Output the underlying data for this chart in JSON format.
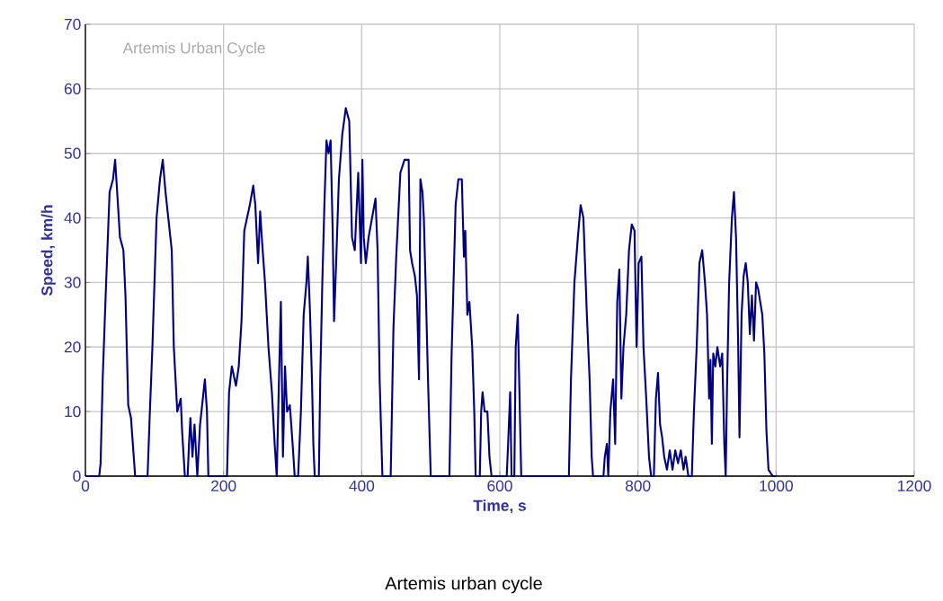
{
  "chart_data": {
    "type": "line",
    "xlabel": "Time, s",
    "ylabel": "Speed, km/h",
    "annotations": [
      "Artemis Urban Cycle",
      "Artemis urban cycle"
    ],
    "x": [
      0,
      20,
      22,
      25,
      30,
      35,
      40,
      43,
      46,
      50,
      55,
      58,
      62,
      66,
      70,
      72,
      90,
      93,
      97,
      103,
      108,
      112,
      116,
      120,
      125,
      128,
      133,
      138,
      140,
      144,
      148,
      150,
      152,
      155,
      158,
      162,
      166,
      170,
      173,
      176,
      178,
      205,
      208,
      212,
      218,
      222,
      226,
      230,
      238,
      243,
      246,
      250,
      253,
      256,
      260,
      265,
      270,
      274,
      277,
      280,
      283,
      286,
      289,
      292,
      296,
      300,
      303,
      308,
      312,
      316,
      320,
      322,
      325,
      328,
      330,
      332,
      338,
      340,
      343,
      346,
      349,
      352,
      355,
      358,
      360,
      363,
      367,
      372,
      377,
      382,
      386,
      390,
      395,
      397,
      399,
      401,
      403,
      406,
      410,
      415,
      420,
      423,
      426,
      430,
      442,
      446,
      450,
      456,
      462,
      468,
      470,
      473,
      477,
      480,
      483,
      485,
      488,
      490,
      493,
      496,
      500,
      527,
      530,
      533,
      536,
      540,
      545,
      548,
      550,
      553,
      556,
      560,
      563,
      565,
      571,
      573,
      575,
      578,
      582,
      585,
      588,
      610,
      612,
      615,
      617,
      621,
      623,
      626,
      628,
      631,
      700,
      703,
      708,
      713,
      717,
      721,
      726,
      730,
      733,
      735,
      750,
      752,
      755,
      757,
      760,
      764,
      767,
      770,
      773,
      776,
      779,
      783,
      787,
      791,
      795,
      798,
      801,
      805,
      808,
      812,
      816,
      819,
      823,
      826,
      829,
      832,
      835,
      838,
      842,
      846,
      850,
      854,
      858,
      862,
      866,
      869,
      873,
      878,
      881,
      885,
      889,
      893,
      897,
      900,
      903,
      905,
      907,
      909,
      912,
      915,
      919,
      922,
      925,
      927,
      929,
      932,
      936,
      939,
      942,
      945,
      947,
      950,
      953,
      956,
      959,
      962,
      965,
      968,
      971,
      974,
      977,
      980,
      983,
      986,
      989,
      995,
      1000
    ],
    "series": [
      {
        "color": "#000080",
        "values": [
          0,
          0,
          2,
          15,
          30,
          44,
          46,
          49,
          44,
          37,
          35,
          28,
          11,
          9,
          3,
          0,
          0,
          9,
          20,
          40,
          46,
          49,
          44,
          40,
          35,
          20,
          10,
          12,
          7,
          0,
          0,
          5,
          9,
          3,
          8,
          0,
          8,
          12,
          15,
          10,
          0,
          0,
          13,
          17,
          14,
          17,
          24,
          38,
          42,
          45,
          42,
          33,
          41,
          36,
          30,
          20,
          13,
          5,
          0,
          14,
          27,
          3,
          17,
          10,
          11,
          5,
          0,
          0,
          10,
          25,
          30,
          34,
          26,
          15,
          5,
          0,
          0,
          15,
          30,
          42,
          52,
          50,
          52,
          38,
          24,
          33,
          46,
          53,
          57,
          55,
          37,
          35,
          47,
          40,
          33,
          49,
          37,
          33,
          37,
          40,
          43,
          35,
          15,
          0,
          0,
          23,
          34,
          47,
          49,
          49,
          35,
          33,
          31,
          28,
          15,
          46,
          44,
          40,
          28,
          15,
          0,
          0,
          18,
          30,
          42,
          46,
          46,
          34,
          38,
          25,
          27,
          20,
          10,
          0,
          0,
          10,
          13,
          10,
          10,
          3,
          0,
          0,
          5,
          13,
          0,
          0,
          20,
          25,
          15,
          0,
          0,
          15,
          30,
          37,
          42,
          40,
          25,
          15,
          3,
          0,
          0,
          3,
          5,
          0,
          10,
          15,
          5,
          27,
          32,
          12,
          20,
          25,
          35,
          39,
          38,
          20,
          33,
          34,
          20,
          12,
          3,
          0,
          0,
          12,
          16,
          8,
          6,
          3,
          1,
          4,
          1,
          4,
          2,
          4,
          1,
          3,
          0,
          0,
          10,
          20,
          33,
          35,
          30,
          25,
          12,
          18,
          5,
          19,
          17,
          20,
          17,
          19,
          5,
          0,
          14,
          30,
          40,
          44,
          37,
          21,
          6,
          25,
          31,
          33,
          30,
          22,
          28,
          21,
          30,
          29,
          27,
          25,
          19,
          7,
          1,
          0,
          0
        ]
      }
    ],
    "xlim": [
      0,
      1200
    ],
    "ylim": [
      0,
      70
    ],
    "xticks": [
      0,
      200,
      400,
      600,
      800,
      1000,
      1200
    ],
    "yticks": [
      0,
      10,
      20,
      30,
      40,
      50,
      60,
      70
    ],
    "grid": true,
    "line_style": "solid"
  }
}
